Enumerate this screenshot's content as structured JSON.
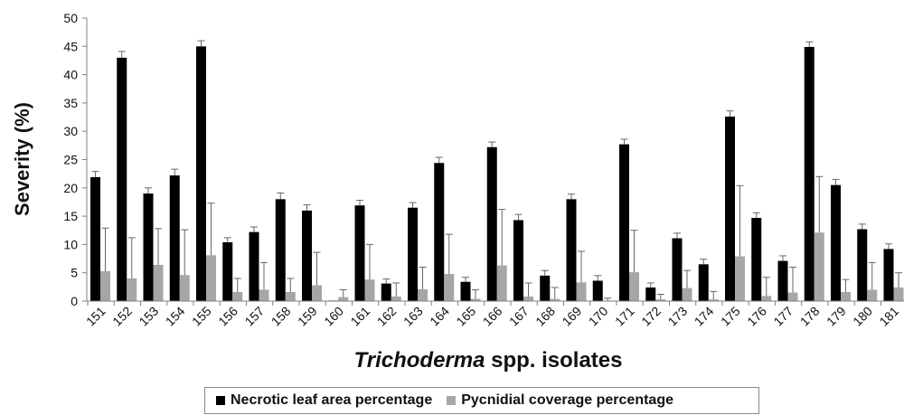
{
  "chart_data": {
    "type": "bar",
    "ylabel": "Severity (%)",
    "xlabel_italic": "Trichoderma",
    "xlabel_rest": " spp. isolates",
    "ylim": [
      0,
      50
    ],
    "yticks": [
      0,
      5,
      10,
      15,
      20,
      25,
      30,
      35,
      40,
      45,
      50
    ],
    "grid": false,
    "legend_placement": "bottom",
    "categories": [
      "151",
      "152",
      "153",
      "154",
      "155",
      "156",
      "157",
      "158",
      "159",
      "160",
      "161",
      "162",
      "163",
      "164",
      "165",
      "166",
      "167",
      "168",
      "169",
      "170",
      "171",
      "172",
      "173",
      "174",
      "175",
      "176",
      "177",
      "178",
      "179",
      "180",
      "181"
    ],
    "series": [
      {
        "name": "Necrotic leaf area percentage",
        "color": "#000000",
        "values": [
          21.9,
          43.0,
          19.0,
          22.2,
          45.0,
          10.4,
          12.2,
          18.0,
          16.0,
          0.1,
          16.9,
          3.1,
          16.5,
          24.4,
          3.4,
          27.2,
          14.3,
          4.5,
          18.0,
          3.6,
          27.7,
          2.4,
          11.1,
          6.5,
          32.6,
          14.7,
          7.1,
          44.9,
          20.5,
          12.7,
          9.2
        ],
        "errors": [
          1.0,
          1.1,
          1.0,
          1.1,
          1.0,
          0.8,
          0.9,
          1.1,
          1.0,
          0.0,
          0.9,
          0.8,
          0.9,
          1.0,
          0.8,
          0.9,
          1.0,
          0.9,
          0.9,
          0.9,
          0.9,
          0.8,
          0.9,
          0.9,
          1.0,
          0.9,
          0.9,
          0.9,
          1.0,
          0.9,
          0.9
        ]
      },
      {
        "name": "Pycnidial coverage percentage",
        "color": "#a6a6a6",
        "values": [
          5.3,
          4.0,
          6.4,
          4.6,
          8.1,
          1.6,
          2.0,
          1.6,
          2.8,
          0.7,
          3.8,
          0.8,
          2.1,
          4.8,
          0.4,
          6.3,
          0.8,
          0.4,
          3.3,
          0.1,
          5.1,
          0.3,
          2.3,
          0.3,
          7.9,
          0.9,
          1.5,
          12.1,
          1.6,
          2.0,
          2.4
        ],
        "errors": [
          7.6,
          7.2,
          6.4,
          8.0,
          9.2,
          2.4,
          4.8,
          2.4,
          5.8,
          1.3,
          6.2,
          2.4,
          3.9,
          7.0,
          1.6,
          9.9,
          2.4,
          2.0,
          5.5,
          0.4,
          7.4,
          0.9,
          3.1,
          1.4,
          12.5,
          3.3,
          4.5,
          9.9,
          2.2,
          4.8,
          2.6
        ]
      }
    ]
  }
}
